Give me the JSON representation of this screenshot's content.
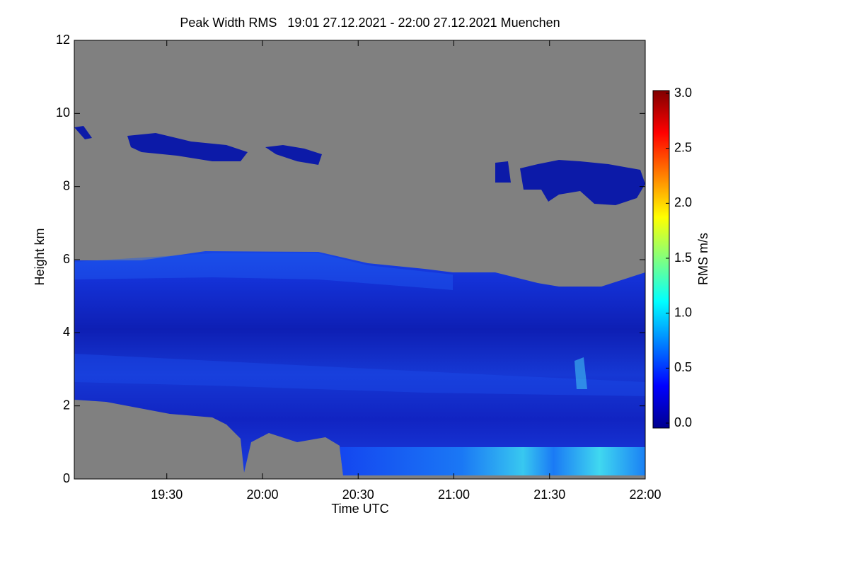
{
  "chart_data": {
    "type": "heatmap",
    "title": "Peak Width RMS   19:01 27.12.2021 - 22:00 27.12.2021 Muenchen",
    "x_label": "Time UTC",
    "y_label": "Height km",
    "xlim": [
      "19:01",
      "22:00"
    ],
    "xticks": [
      "19:30",
      "20:00",
      "20:30",
      "21:00",
      "21:30",
      "22:00"
    ],
    "ylim": [
      0,
      12
    ],
    "yticks": [
      0,
      2,
      4,
      6,
      8,
      10,
      12
    ],
    "colorbar": {
      "label": "RMS m/s",
      "lim": [
        0,
        3
      ],
      "ticks": [
        {
          "value": 0,
          "label": "0.0"
        },
        {
          "value": 0.5,
          "label": "0.5"
        },
        {
          "value": 1,
          "label": "1.0"
        },
        {
          "value": 1.5,
          "label": "1.5"
        },
        {
          "value": 2,
          "label": "2.0"
        },
        {
          "value": 2.5,
          "label": "2.5"
        },
        {
          "value": 3,
          "label": "3.0"
        }
      ]
    }
  }
}
